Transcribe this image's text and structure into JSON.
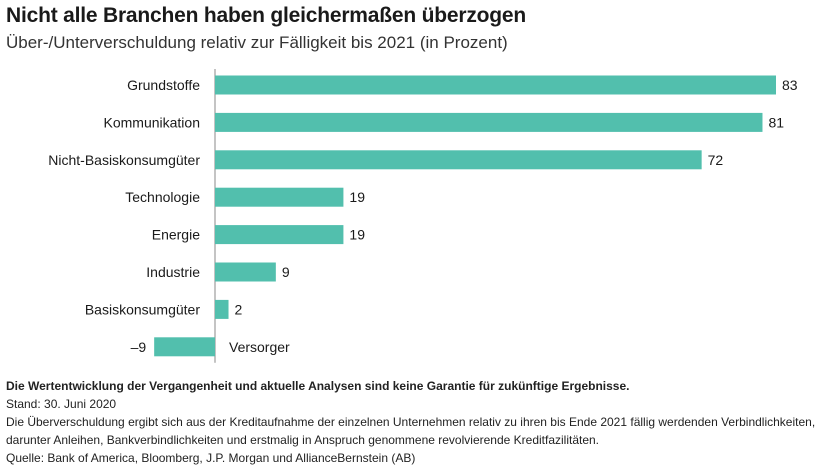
{
  "header": {
    "title": "Nicht alle Branchen haben gleichermaßen überzogen",
    "subtitle": "Über-/Unterverschuldung relativ zur Fälligkeit bis 2021 (in Prozent)"
  },
  "chart_data": {
    "type": "bar",
    "orientation": "horizontal",
    "categories": [
      "Grundstoffe",
      "Kommunikation",
      "Nicht-Basiskonsumgüter",
      "Technologie",
      "Energie",
      "Industrie",
      "Basiskonsumgüter",
      "Versorger"
    ],
    "values": [
      83,
      81,
      72,
      19,
      19,
      9,
      2,
      -9
    ],
    "value_labels": [
      "83",
      "81",
      "72",
      "19",
      "19",
      "9",
      "2",
      "–9"
    ],
    "bar_color": "#52bfad",
    "xlim": [
      -9,
      83
    ],
    "grid": false,
    "legend": "none"
  },
  "footer": {
    "disclaimer": "Die Wertentwicklung der Vergangenheit und aktuelle Analysen sind keine Garantie für zukünftige Ergebnisse.",
    "date": "Stand: 30. Juni 2020",
    "note": "Die Überverschuldung ergibt sich aus der Kreditaufnahme der einzelnen Unternehmen relativ zu ihren bis Ende 2021 fällig werdenden Verbindlichkeiten, darunter Anleihen, Bankverbindlichkeiten und erstmalig in Anspruch genommene revolvierende Kreditfazilitäten.",
    "source": "Quelle: Bank of America, Bloomberg, J.P. Morgan und AllianceBernstein (AB)"
  }
}
